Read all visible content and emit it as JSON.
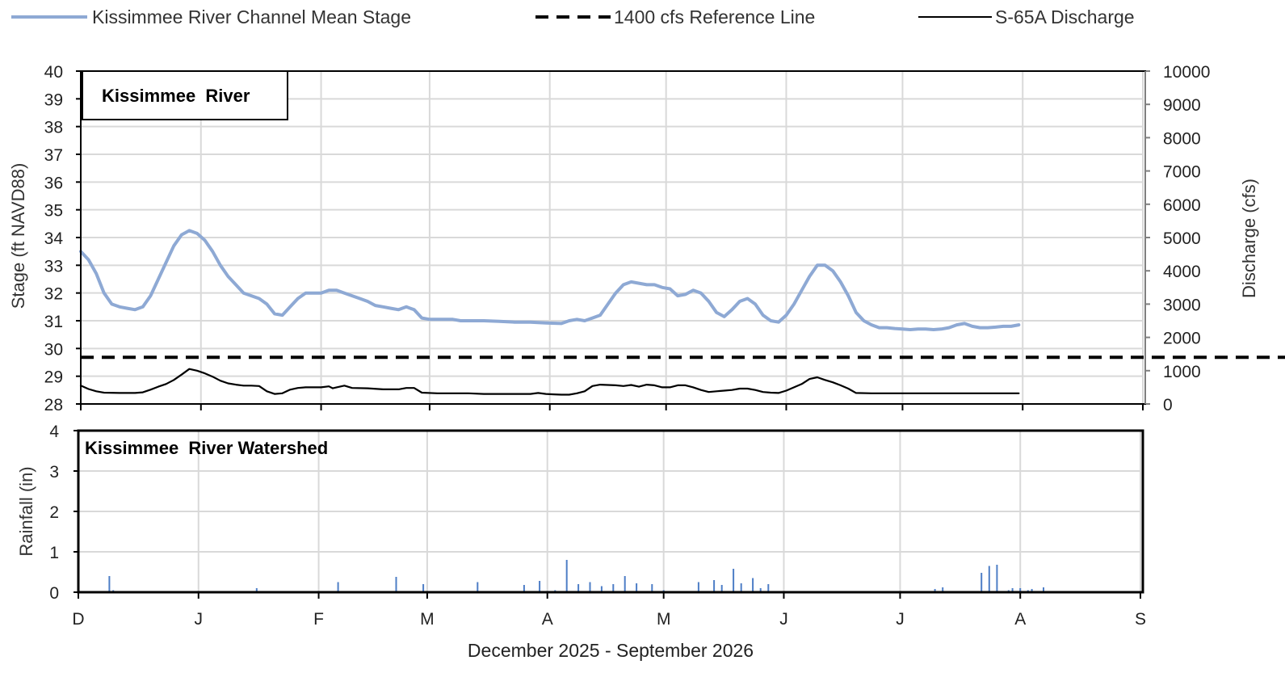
{
  "chart_data": [
    {
      "type": "line",
      "panel_title": "Kissimmee  River",
      "xlabel": "",
      "ylabel": "Stage (ft NAVD88)",
      "y2label": "Discharge (cfs)",
      "ylim": [
        28,
        40
      ],
      "y2lim": [
        0,
        10000
      ],
      "yticks": [
        "28",
        "29",
        "30",
        "31",
        "32",
        "33",
        "34",
        "35",
        "36",
        "37",
        "38",
        "39",
        "40"
      ],
      "y2ticks": [
        "0",
        "1000",
        "2000",
        "3000",
        "4000",
        "5000",
        "6000",
        "7000",
        "8000",
        "9000",
        "10000"
      ],
      "grid": true,
      "legend_position": "top",
      "series": [
        {
          "name": "Kissimmee River Channel Mean Stage",
          "axis": "left",
          "color": "#8EA9D4",
          "style": "solid",
          "points": [
            [
              0,
              33.5
            ],
            [
              2,
              33.2
            ],
            [
              4,
              32.7
            ],
            [
              6,
              32.0
            ],
            [
              8,
              31.6
            ],
            [
              10,
              31.5
            ],
            [
              12,
              31.45
            ],
            [
              14,
              31.4
            ],
            [
              16,
              31.5
            ],
            [
              18,
              31.9
            ],
            [
              20,
              32.5
            ],
            [
              22,
              33.1
            ],
            [
              24,
              33.7
            ],
            [
              26,
              34.1
            ],
            [
              28,
              34.25
            ],
            [
              30,
              34.15
            ],
            [
              32,
              33.9
            ],
            [
              34,
              33.5
            ],
            [
              36,
              33.0
            ],
            [
              38,
              32.6
            ],
            [
              40,
              32.3
            ],
            [
              42,
              32.0
            ],
            [
              44,
              31.9
            ],
            [
              46,
              31.8
            ],
            [
              48,
              31.6
            ],
            [
              50,
              31.25
            ],
            [
              52,
              31.2
            ],
            [
              54,
              31.5
            ],
            [
              56,
              31.8
            ],
            [
              58,
              32.0
            ],
            [
              60,
              32.0
            ],
            [
              62,
              32.0
            ],
            [
              64,
              32.1
            ],
            [
              66,
              32.1
            ],
            [
              68,
              32.0
            ],
            [
              70,
              31.9
            ],
            [
              72,
              31.8
            ],
            [
              74,
              31.7
            ],
            [
              76,
              31.55
            ],
            [
              78,
              31.5
            ],
            [
              80,
              31.45
            ],
            [
              82,
              31.4
            ],
            [
              84,
              31.5
            ],
            [
              86,
              31.4
            ],
            [
              88,
              31.1
            ],
            [
              90,
              31.05
            ],
            [
              92,
              31.05
            ],
            [
              94,
              31.05
            ],
            [
              96,
              31.05
            ],
            [
              98,
              31.0
            ],
            [
              100,
              31.0
            ],
            [
              104,
              31.0
            ],
            [
              108,
              30.98
            ],
            [
              112,
              30.95
            ],
            [
              116,
              30.95
            ],
            [
              120,
              30.92
            ],
            [
              124,
              30.9
            ],
            [
              126,
              31.0
            ],
            [
              128,
              31.05
            ],
            [
              130,
              31.0
            ],
            [
              132,
              31.1
            ],
            [
              134,
              31.2
            ],
            [
              136,
              31.6
            ],
            [
              138,
              32.0
            ],
            [
              140,
              32.3
            ],
            [
              142,
              32.4
            ],
            [
              144,
              32.35
            ],
            [
              146,
              32.3
            ],
            [
              148,
              32.3
            ],
            [
              150,
              32.2
            ],
            [
              152,
              32.15
            ],
            [
              154,
              31.9
            ],
            [
              156,
              31.95
            ],
            [
              158,
              32.1
            ],
            [
              160,
              32.0
            ],
            [
              162,
              31.7
            ],
            [
              164,
              31.3
            ],
            [
              166,
              31.15
            ],
            [
              168,
              31.4
            ],
            [
              170,
              31.7
            ],
            [
              172,
              31.8
            ],
            [
              174,
              31.6
            ],
            [
              176,
              31.2
            ],
            [
              178,
              31.0
            ],
            [
              180,
              30.95
            ],
            [
              182,
              31.2
            ],
            [
              184,
              31.6
            ],
            [
              186,
              32.1
            ],
            [
              188,
              32.6
            ],
            [
              190,
              33.0
            ],
            [
              192,
              33.0
            ],
            [
              194,
              32.8
            ],
            [
              196,
              32.4
            ],
            [
              198,
              31.9
            ],
            [
              200,
              31.3
            ],
            [
              202,
              31.0
            ],
            [
              204,
              30.85
            ],
            [
              206,
              30.75
            ],
            [
              208,
              30.75
            ],
            [
              210,
              30.72
            ],
            [
              212,
              30.7
            ],
            [
              214,
              30.68
            ],
            [
              216,
              30.7
            ],
            [
              218,
              30.7
            ],
            [
              220,
              30.68
            ],
            [
              222,
              30.7
            ],
            [
              224,
              30.75
            ],
            [
              226,
              30.85
            ],
            [
              228,
              30.9
            ],
            [
              230,
              30.8
            ],
            [
              232,
              30.75
            ],
            [
              234,
              30.75
            ],
            [
              236,
              30.77
            ],
            [
              238,
              30.8
            ],
            [
              240,
              30.8
            ],
            [
              242,
              30.85
            ]
          ]
        },
        {
          "name": "1400 cfs Reference Line",
          "axis": "right",
          "color": "#000000",
          "style": "dashed",
          "points": [
            [
              0,
              1400
            ],
            [
              381,
              1400
            ]
          ]
        },
        {
          "name": "S-65A Discharge",
          "axis": "right",
          "color": "#000000",
          "style": "solid",
          "points": [
            [
              0,
              550
            ],
            [
              2,
              450
            ],
            [
              4,
              380
            ],
            [
              6,
              340
            ],
            [
              10,
              330
            ],
            [
              14,
              330
            ],
            [
              16,
              350
            ],
            [
              18,
              430
            ],
            [
              20,
              520
            ],
            [
              22,
              600
            ],
            [
              24,
              720
            ],
            [
              26,
              880
            ],
            [
              28,
              1050
            ],
            [
              30,
              1000
            ],
            [
              32,
              920
            ],
            [
              34,
              820
            ],
            [
              36,
              700
            ],
            [
              38,
              620
            ],
            [
              40,
              580
            ],
            [
              42,
              550
            ],
            [
              44,
              550
            ],
            [
              46,
              540
            ],
            [
              48,
              380
            ],
            [
              50,
              300
            ],
            [
              52,
              320
            ],
            [
              54,
              430
            ],
            [
              56,
              480
            ],
            [
              58,
              500
            ],
            [
              62,
              500
            ],
            [
              64,
              530
            ],
            [
              65,
              470
            ],
            [
              66,
              500
            ],
            [
              68,
              550
            ],
            [
              70,
              480
            ],
            [
              74,
              470
            ],
            [
              78,
              440
            ],
            [
              82,
              440
            ],
            [
              84,
              480
            ],
            [
              86,
              480
            ],
            [
              88,
              340
            ],
            [
              92,
              320
            ],
            [
              100,
              320
            ],
            [
              104,
              300
            ],
            [
              116,
              300
            ],
            [
              118,
              330
            ],
            [
              120,
              300
            ],
            [
              122,
              290
            ],
            [
              124,
              280
            ],
            [
              126,
              280
            ],
            [
              128,
              320
            ],
            [
              130,
              380
            ],
            [
              132,
              540
            ],
            [
              134,
              580
            ],
            [
              138,
              560
            ],
            [
              140,
              540
            ],
            [
              142,
              570
            ],
            [
              144,
              520
            ],
            [
              146,
              580
            ],
            [
              148,
              560
            ],
            [
              150,
              500
            ],
            [
              152,
              500
            ],
            [
              154,
              560
            ],
            [
              156,
              560
            ],
            [
              158,
              500
            ],
            [
              160,
              420
            ],
            [
              162,
              360
            ],
            [
              164,
              380
            ],
            [
              166,
              400
            ],
            [
              168,
              420
            ],
            [
              170,
              460
            ],
            [
              172,
              460
            ],
            [
              174,
              420
            ],
            [
              176,
              360
            ],
            [
              178,
              340
            ],
            [
              180,
              330
            ],
            [
              182,
              400
            ],
            [
              184,
              500
            ],
            [
              186,
              600
            ],
            [
              188,
              750
            ],
            [
              190,
              800
            ],
            [
              192,
              720
            ],
            [
              194,
              650
            ],
            [
              196,
              560
            ],
            [
              198,
              460
            ],
            [
              200,
              330
            ],
            [
              204,
              320
            ],
            [
              242,
              320
            ]
          ]
        }
      ]
    },
    {
      "type": "bar",
      "panel_title": "Kissimmee  River Watershed",
      "xlabel": "December 2025 - September 2026",
      "ylabel": "Rainfall (in)",
      "ylim": [
        0,
        4
      ],
      "yticks": [
        "0",
        "1",
        "2",
        "3",
        "4"
      ],
      "grid": true,
      "color": "#4E7EC6",
      "x_day": [
        8,
        9,
        46,
        67,
        82,
        89,
        103,
        115,
        119,
        123,
        126,
        129,
        132,
        135,
        138,
        141,
        144,
        148,
        151,
        160,
        164,
        166,
        169,
        171,
        174,
        176,
        178,
        219,
        221,
        223,
        233,
        235,
        237,
        240,
        241,
        243,
        245,
        246,
        249
      ],
      "values": [
        0.4,
        0.05,
        0.1,
        0.25,
        0.38,
        0.2,
        0.25,
        0.18,
        0.28,
        0.05,
        0.8,
        0.2,
        0.25,
        0.15,
        0.2,
        0.4,
        0.22,
        0.2,
        0.05,
        0.25,
        0.3,
        0.18,
        0.58,
        0.22,
        0.35,
        0.1,
        0.2,
        0.03,
        0.08,
        0.12,
        0.48,
        0.65,
        0.68,
        0.05,
        0.1,
        0.1,
        0.05,
        0.08,
        0.12
      ]
    }
  ],
  "x_axis": {
    "tick_labels": [
      "D",
      "J",
      "F",
      "M",
      "A",
      "M",
      "J",
      "J",
      "A",
      "S"
    ],
    "tick_days": [
      0,
      31,
      62,
      90,
      121,
      151,
      182,
      212,
      243,
      274
    ]
  },
  "legend": [
    {
      "label": "Kissimmee River Channel Mean Stage",
      "color": "#8EA9D4",
      "style": "solid"
    },
    {
      "label": "1400 cfs Reference Line",
      "color": "#000000",
      "style": "dashed"
    },
    {
      "label": "S-65A Discharge",
      "color": "#000000",
      "style": "solid"
    }
  ]
}
